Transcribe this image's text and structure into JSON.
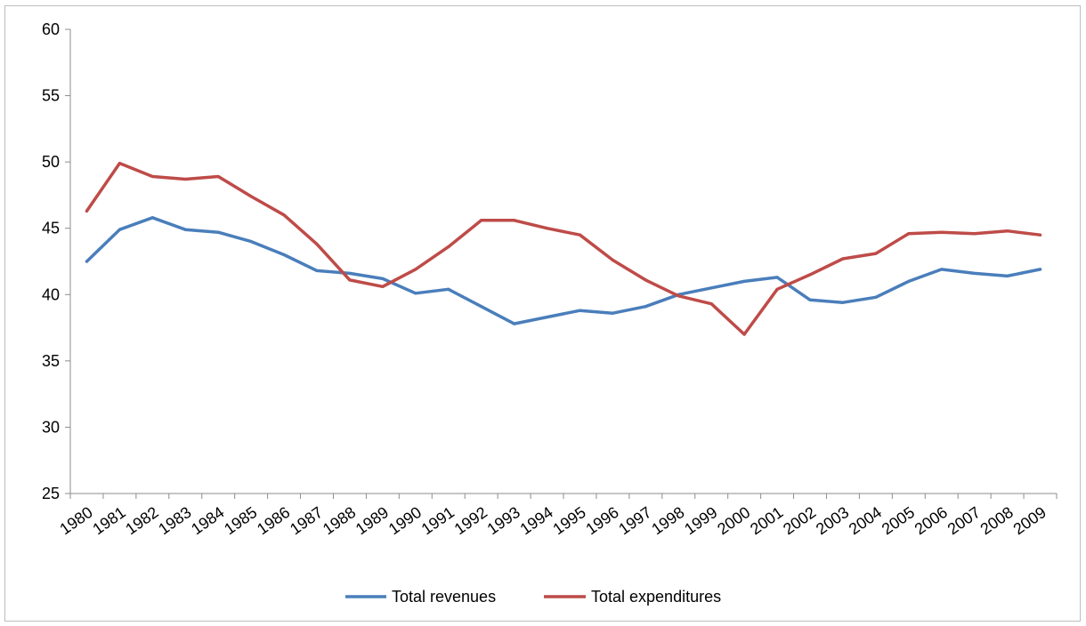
{
  "chart_data": {
    "type": "line",
    "title": "",
    "xlabel": "",
    "ylabel": "",
    "ylim": [
      25,
      60
    ],
    "y_ticks": [
      25,
      30,
      35,
      40,
      45,
      50,
      55,
      60
    ],
    "grid": false,
    "legend_position": "bottom",
    "x": [
      "1980",
      "1981",
      "1982",
      "1983",
      "1984",
      "1985",
      "1986",
      "1987",
      "1988",
      "1989",
      "1990",
      "1991",
      "1992",
      "1993",
      "1994",
      "1995",
      "1996",
      "1997",
      "1998",
      "1999",
      "2000",
      "2001",
      "2002",
      "2003",
      "2004",
      "2005",
      "2006",
      "2007",
      "2008",
      "2009"
    ],
    "series": [
      {
        "name": "Total revenues",
        "color": "#4a7ebb",
        "values": [
          42.5,
          44.9,
          45.8,
          44.9,
          44.7,
          44.0,
          43.0,
          41.8,
          41.6,
          41.2,
          40.1,
          40.4,
          39.1,
          37.8,
          38.3,
          38.8,
          38.6,
          39.1,
          40.0,
          40.5,
          41.0,
          41.3,
          39.6,
          39.4,
          39.8,
          41.0,
          41.9,
          41.6,
          41.4,
          41.9
        ]
      },
      {
        "name": "Total expenditures",
        "color": "#be4b48",
        "values": [
          46.3,
          49.9,
          48.9,
          48.7,
          48.9,
          47.4,
          46.0,
          43.8,
          41.1,
          40.6,
          41.9,
          43.6,
          45.6,
          45.6,
          45.0,
          44.5,
          42.6,
          41.1,
          39.9,
          39.3,
          37.0,
          40.4,
          41.5,
          42.7,
          43.1,
          44.6,
          44.7,
          44.6,
          44.8,
          44.5
        ]
      }
    ]
  }
}
